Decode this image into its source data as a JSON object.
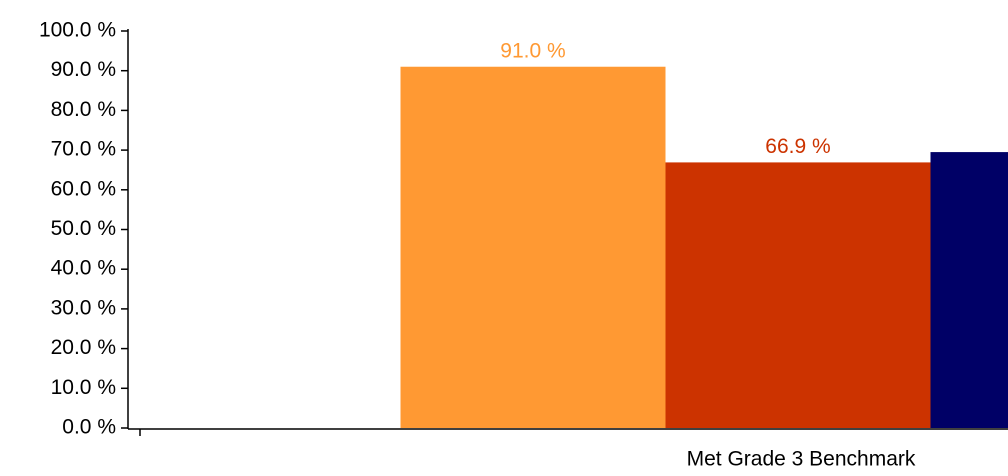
{
  "chart_data": {
    "type": "bar",
    "categories": [
      "Met Grade 3 Benchmark"
    ],
    "series": [
      {
        "color": "#ff9933",
        "values": [
          91.0
        ],
        "value_labels": [
          "91.0 %"
        ]
      },
      {
        "color": "#cc3300",
        "values": [
          66.9
        ],
        "value_labels": [
          "66.9 %"
        ]
      },
      {
        "color": "#000066",
        "values": [
          69.5
        ]
      }
    ],
    "ylim": [
      0,
      100
    ],
    "yticks": [
      {
        "value": 0,
        "label": "0.0 %"
      },
      {
        "value": 10,
        "label": "10.0 %"
      },
      {
        "value": 20,
        "label": "20.0 %"
      },
      {
        "value": 30,
        "label": "30.0 %"
      },
      {
        "value": 40,
        "label": "40.0 %"
      },
      {
        "value": 50,
        "label": "50.0 %"
      },
      {
        "value": 60,
        "label": "60.0 %"
      },
      {
        "value": 70,
        "label": "70.0 %"
      },
      {
        "value": 80,
        "label": "80.0 %"
      },
      {
        "value": 90,
        "label": "90.0 %"
      },
      {
        "value": 100,
        "label": "100.0 %"
      }
    ]
  }
}
